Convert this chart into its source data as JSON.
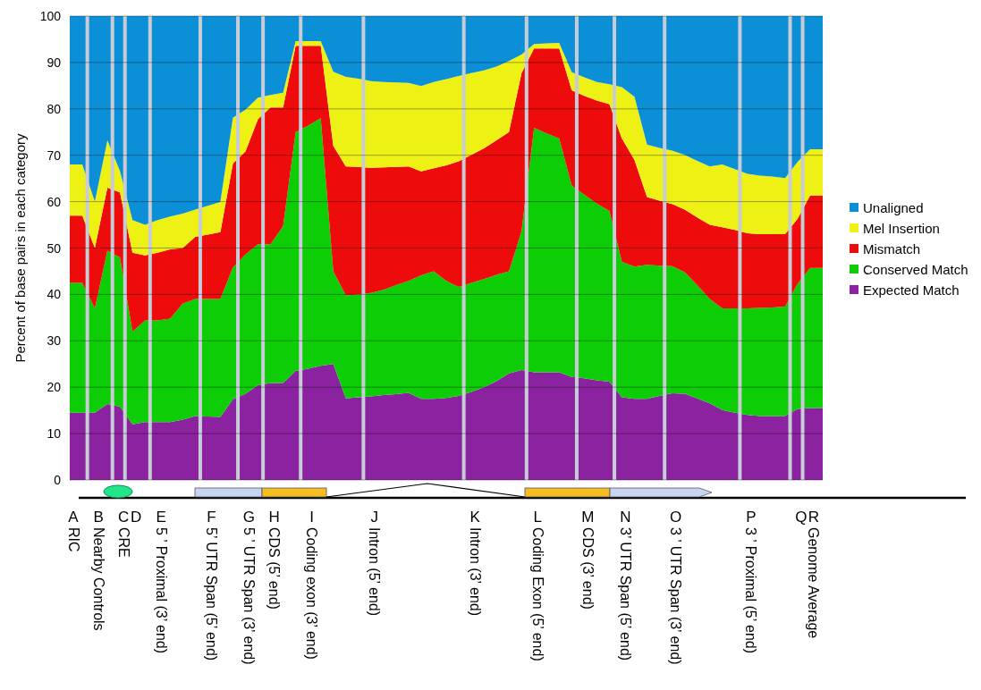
{
  "chart_data": {
    "type": "area",
    "stacked": true,
    "ylabel": "Percent of base pairs in each category",
    "categories": [
      "A RIC",
      null,
      "B Nearby Controls",
      null,
      "C CRE",
      "D",
      null,
      "E 5 ’ Proximal (3’ end)",
      null,
      null,
      null,
      "F 5’ UTR Span (5’ end)",
      null,
      null,
      "G 5 ’ UTR Span (3’ end)",
      null,
      "H CDS (5’ end)",
      null,
      null,
      "I Coding exon (3’ end)",
      null,
      null,
      null,
      null,
      "J Intron (5’ end)",
      null,
      null,
      null,
      null,
      null,
      null,
      null,
      "K Intron (3’ end)",
      null,
      null,
      null,
      null,
      "L Coding Exon (5’ end)",
      null,
      null,
      null,
      "M CDS (3’ end)",
      null,
      null,
      "N 3’ UTR Span (5’ end)",
      null,
      null,
      null,
      "O 3 ’ UTR Span (3’ end)",
      null,
      null,
      null,
      null,
      null,
      "P 3 ’ Proximal (5’ end)",
      null,
      null,
      null,
      "Q",
      "R Genome Average",
      null
    ],
    "series": [
      {
        "name": "Expected Match",
        "color": "#8b23a0",
        "values": [
          14.5,
          14.5,
          14.5,
          16.4,
          15.8,
          12,
          12.5,
          12.5,
          12.5,
          13,
          13.8,
          13.7,
          13.6,
          17.4,
          18.6,
          20.4,
          20.9,
          20.9,
          23.5,
          24,
          24.6,
          25,
          17.6,
          17.8,
          18,
          18.3,
          18.5,
          18.8,
          17.5,
          17.5,
          17.7,
          18.1,
          19,
          20,
          21.3,
          23,
          23.7,
          23.2,
          23.2,
          23.2,
          22.2,
          21.9,
          21.5,
          21.2,
          17.8,
          17.5,
          17.5,
          18.1,
          18.7,
          18.6,
          17.6,
          16.5,
          15.1,
          14.5,
          14,
          13.8,
          13.8,
          13.8,
          15.3,
          15.5,
          15.5
        ]
      },
      {
        "name": "Conserved Match",
        "color": "#0dcd07",
        "values": [
          28,
          28,
          22.5,
          33,
          32.2,
          20,
          21.9,
          21.9,
          22.3,
          25,
          25.2,
          25.3,
          25.4,
          28.4,
          30,
          30.4,
          29.9,
          33.8,
          51.5,
          52.4,
          53.4,
          20,
          22.2,
          22.2,
          22.3,
          22.7,
          23.5,
          24.1,
          26.6,
          27.5,
          25.2,
          23.5,
          23.5,
          23.3,
          22.9,
          22,
          29.9,
          52.7,
          51.5,
          50.4,
          41.3,
          39.6,
          38.1,
          36.8,
          29.2,
          28.5,
          28.9,
          28.1,
          27.4,
          26.2,
          24.4,
          22.5,
          21.9,
          22.5,
          23,
          23.3,
          23.4,
          23.6,
          27,
          30.2,
          30.2
        ]
      },
      {
        "name": "Mismatch",
        "color": "#ee0b0b",
        "values": [
          14.5,
          14.5,
          13,
          13.6,
          14,
          17,
          14,
          14.6,
          14.9,
          12,
          13.4,
          13.9,
          14.4,
          22.4,
          22.2,
          27,
          29.5,
          25.6,
          18.6,
          17.2,
          15.6,
          27,
          27.8,
          27.5,
          27,
          26.4,
          25.5,
          24.7,
          22.4,
          22.2,
          24.9,
          27.1,
          27.6,
          28.2,
          29,
          30,
          34.1,
          17.1,
          18.3,
          19.4,
          20.5,
          21.3,
          22.2,
          23,
          26.6,
          23,
          14.6,
          14,
          13.4,
          13.5,
          14.6,
          16,
          17.5,
          16.9,
          16.2,
          15.9,
          15.8,
          15.6,
          14,
          15.6,
          15.6
        ]
      },
      {
        "name": "Mel Insertion",
        "color": "#eef214",
        "values": [
          11,
          11,
          10,
          10.2,
          4.6,
          7,
          6.6,
          7,
          7.1,
          7.4,
          5.9,
          6.2,
          6.5,
          9.9,
          9,
          4.6,
          2.7,
          3.2,
          1,
          1,
          1,
          16,
          19.3,
          19,
          18.7,
          18.4,
          18.2,
          18,
          18.4,
          18.6,
          18.6,
          18.4,
          17.6,
          16.8,
          15.9,
          15.3,
          4,
          1,
          1.1,
          1.2,
          3.9,
          4,
          4,
          4.3,
          11.1,
          13.6,
          11.3,
          11.4,
          11.5,
          11.8,
          12.2,
          12.6,
          13.5,
          13.1,
          12.8,
          12.6,
          12.4,
          12.1,
          12.3,
          10,
          10
        ]
      },
      {
        "name": "Unaligned",
        "color": "#0b90d8",
        "values": [
          32,
          32,
          40,
          26.8,
          33.4,
          44,
          45,
          44,
          43.2,
          42.6,
          41.7,
          40.9,
          40.1,
          21.9,
          20.2,
          17.6,
          17,
          16.5,
          5.4,
          5.4,
          5.4,
          12,
          13.1,
          13.5,
          14,
          14.2,
          14.3,
          14.4,
          15.1,
          14.2,
          13.6,
          12.9,
          12.3,
          11.7,
          10.9,
          9.7,
          8.3,
          6,
          5.9,
          5.8,
          12.1,
          13.2,
          14.2,
          14.7,
          15.3,
          17.4,
          27.7,
          28.4,
          29,
          29.9,
          31.2,
          32.4,
          32,
          33,
          34,
          34.4,
          34.6,
          34.9,
          31.4,
          28.7,
          28.7
        ]
      }
    ],
    "ylim": [
      0,
      100
    ],
    "yticks": [
      0,
      10,
      20,
      30,
      40,
      50,
      60,
      70,
      80,
      90,
      100
    ],
    "grid": "y",
    "legend": "right"
  }
}
